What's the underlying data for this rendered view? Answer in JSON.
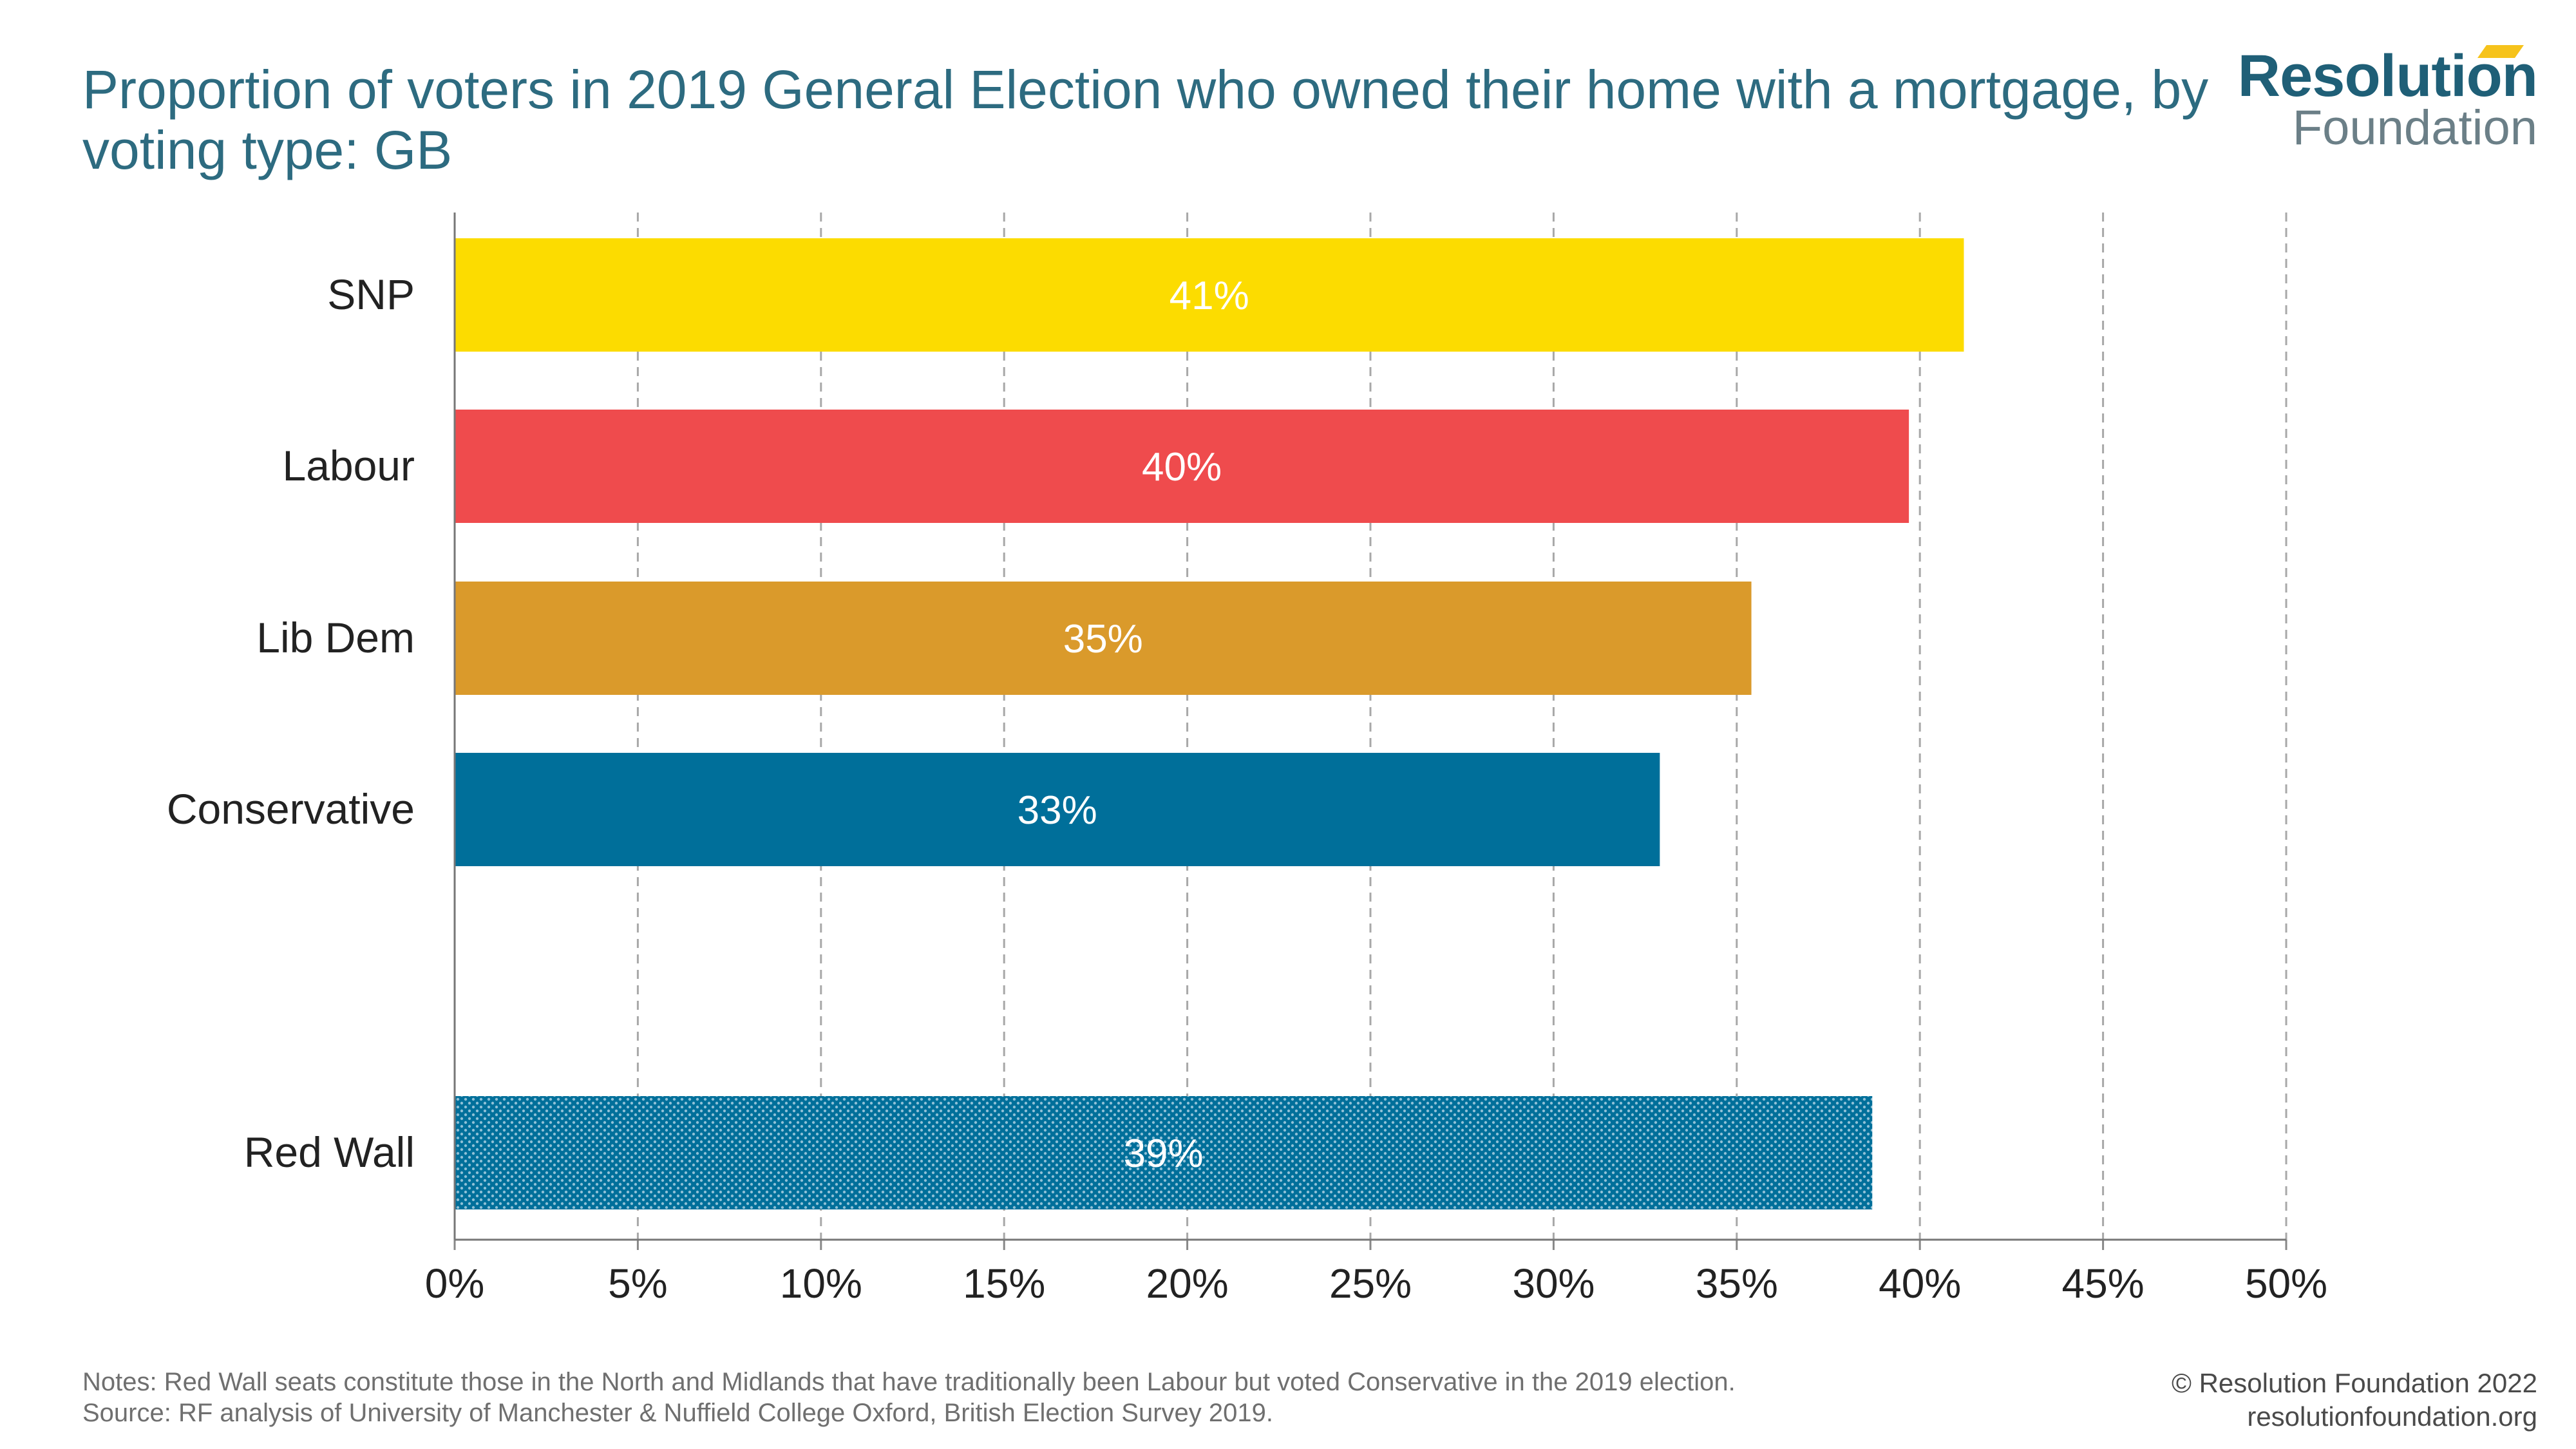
{
  "title": "Proportion of voters in 2019 General Election who owned their home with a mortgage, by voting type: GB",
  "logo": {
    "line1": "Resolution",
    "line2": "Foundation"
  },
  "notes": "Notes: Red Wall seats constitute those in the North and Midlands that have traditionally been Labour but voted Conservative in the 2019 election.",
  "source": "Source: RF analysis of University of Manchester & Nuffield College Oxford, British Election Survey 2019.",
  "copyright": "© Resolution Foundation 2022",
  "website": "resolutionfoundation.org",
  "colors": {
    "title": "#2d6b80",
    "snp": "#fcdc00",
    "labour": "#ef4b4d",
    "libdem": "#da9a2b",
    "conservative": "#006f9a",
    "redwall": "#006f9a"
  },
  "chart_data": {
    "type": "bar",
    "orientation": "horizontal",
    "categories": [
      "SNP",
      "Labour",
      "Lib Dem",
      "Conservative",
      "Red Wall"
    ],
    "values": [
      41.2,
      39.7,
      35.4,
      32.9,
      38.7
    ],
    "data_labels": [
      "41%",
      "40%",
      "35%",
      "33%",
      "39%"
    ],
    "bar_colors": [
      "#fcdc00",
      "#ef4b4d",
      "#da9a2b",
      "#006f9a",
      "#006f9a"
    ],
    "bar_patterns": [
      "solid",
      "solid",
      "solid",
      "solid",
      "dotted"
    ],
    "xlim": [
      0,
      50
    ],
    "xticks": [
      "0%",
      "5%",
      "10%",
      "15%",
      "20%",
      "25%",
      "30%",
      "35%",
      "40%",
      "45%",
      "50%"
    ],
    "grid": "vertical dashed",
    "legend": "none"
  }
}
